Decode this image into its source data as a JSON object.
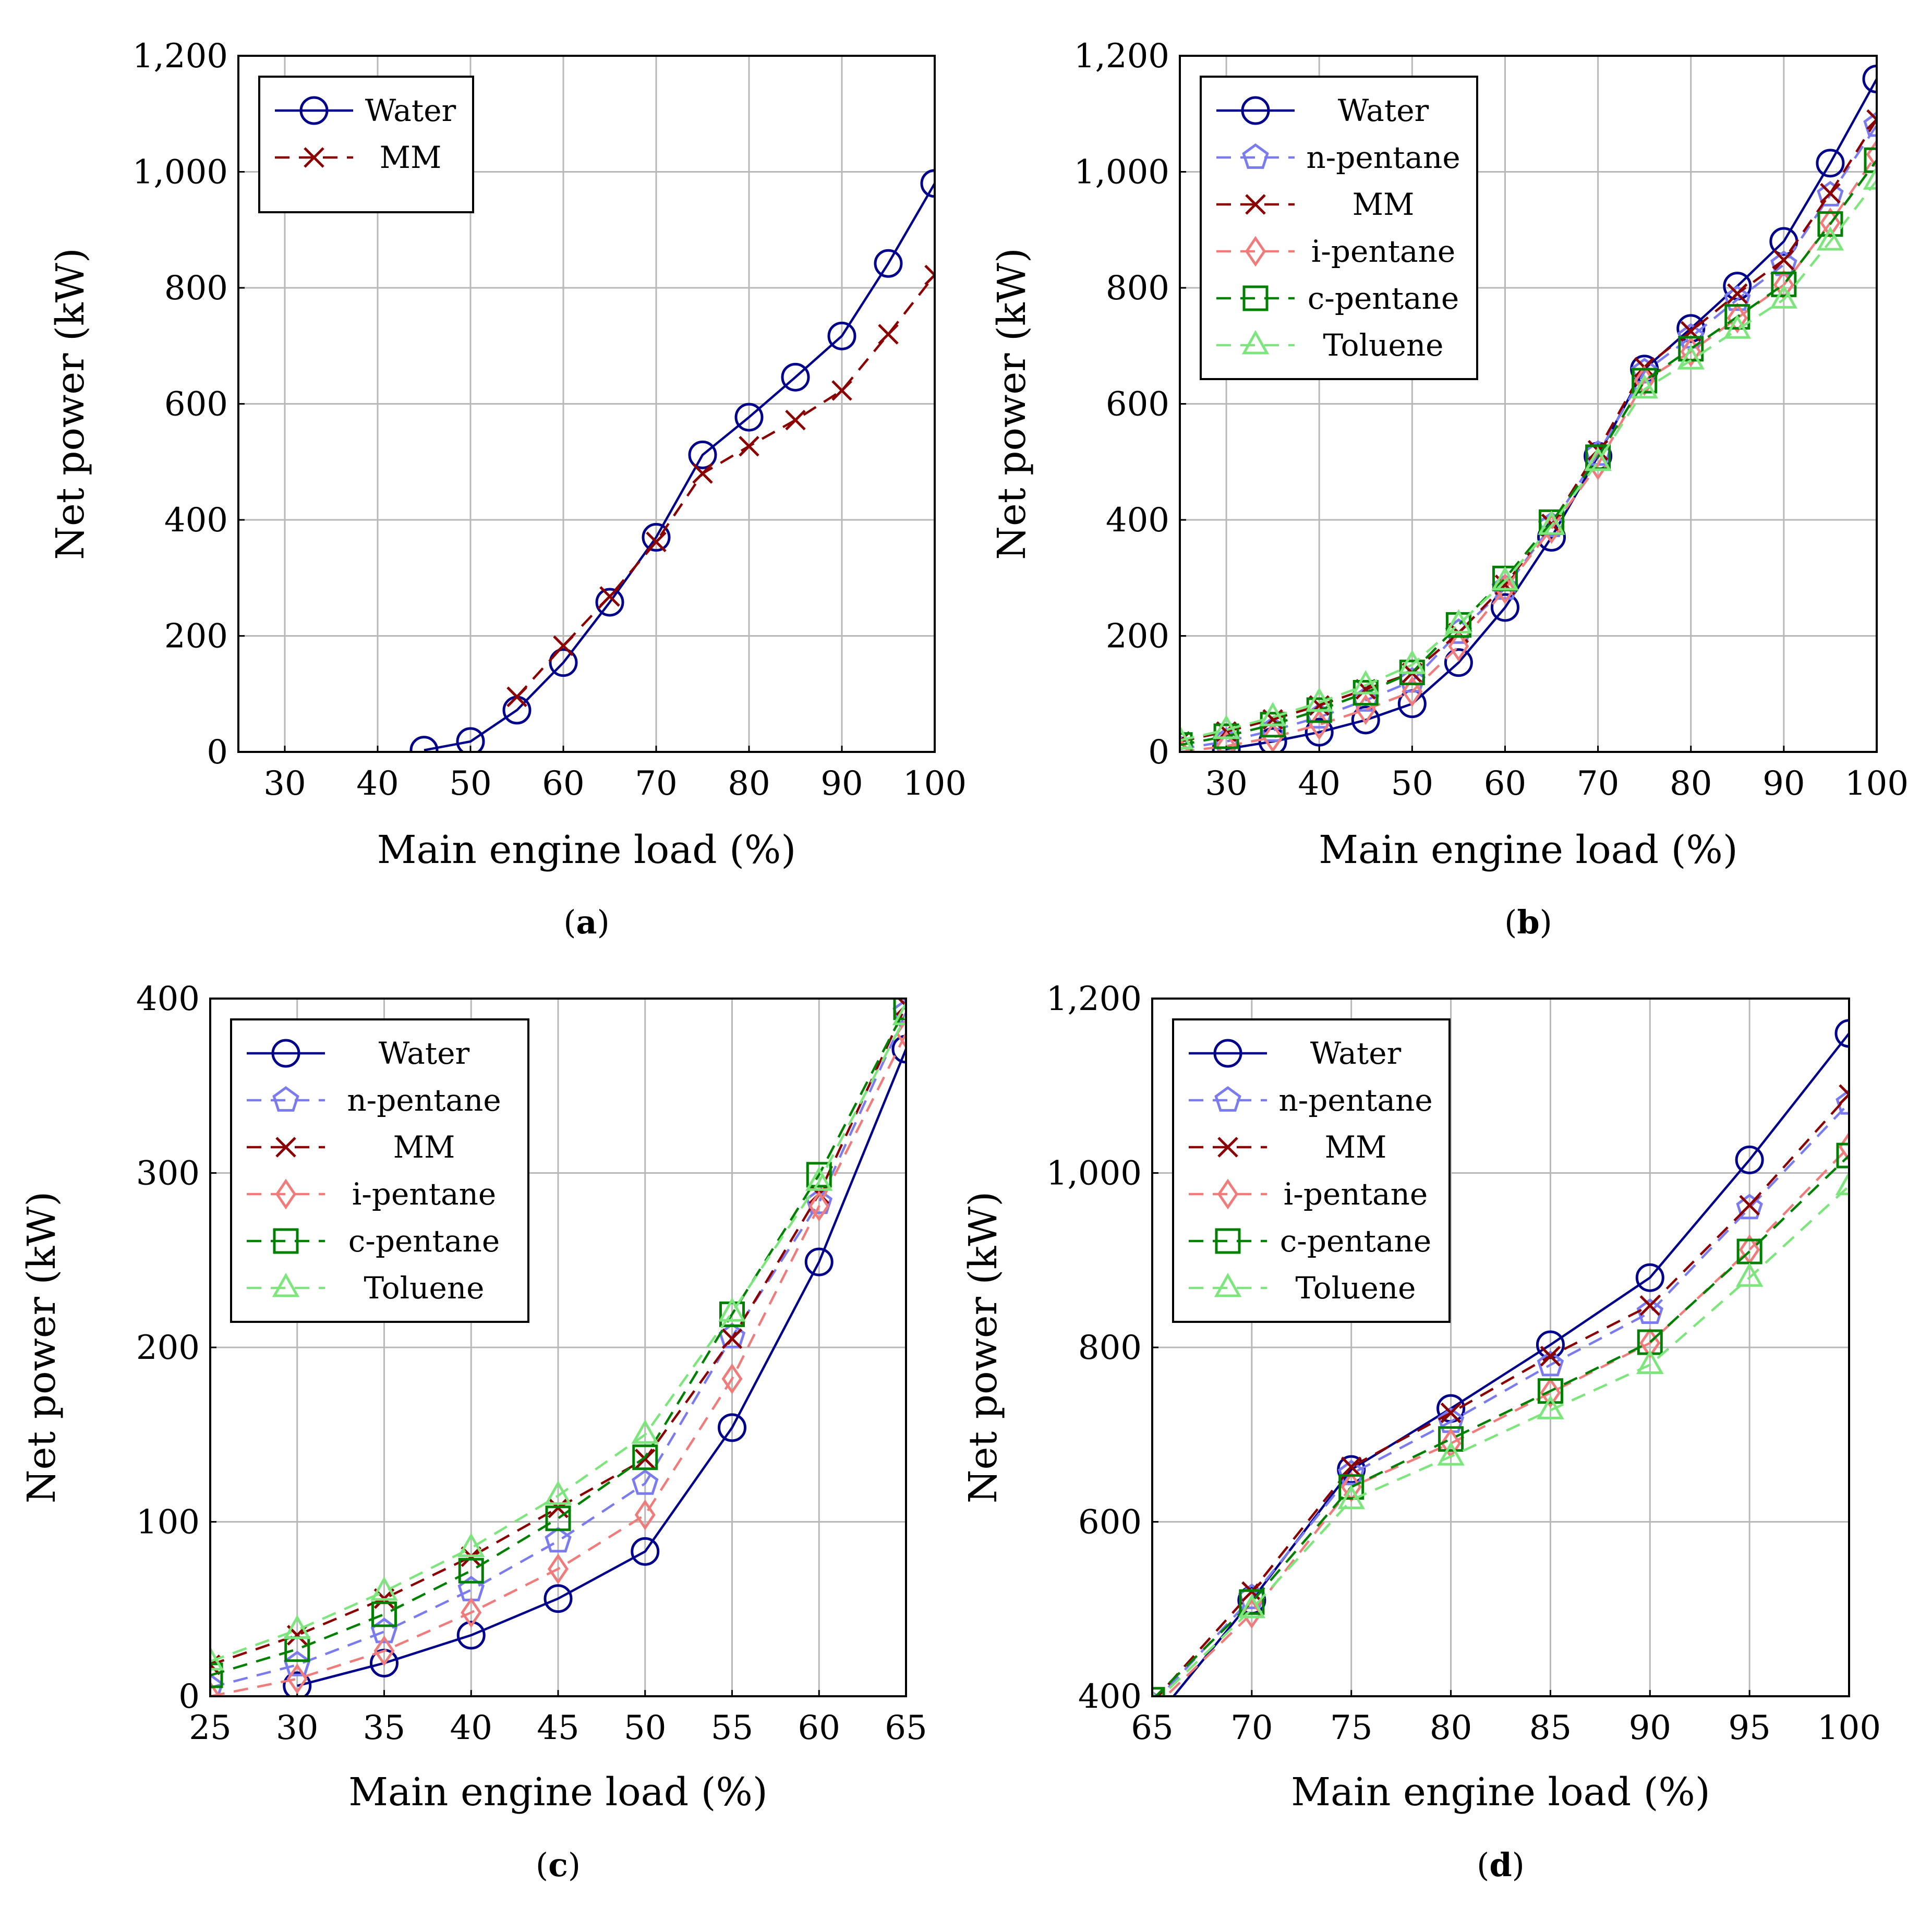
{
  "chart_data": [
    {
      "type": "line",
      "caption_letter": "a",
      "xlabel": "Main engine load (%)",
      "ylabel": "Net power (kW)",
      "xlim": [
        25,
        100
      ],
      "ylim": [
        0,
        1200
      ],
      "xticks": [
        30,
        40,
        50,
        60,
        70,
        80,
        90,
        100
      ],
      "xtick_labels": [
        "30",
        "40",
        "50",
        "60",
        "70",
        "80",
        "90",
        "100"
      ],
      "yticks": [
        0,
        200,
        400,
        600,
        800,
        1000,
        1200
      ],
      "ytick_labels": [
        "0",
        "200",
        "400",
        "600",
        "800",
        "1,000",
        "1,200"
      ],
      "grid": true,
      "legend": "top-left",
      "series": [
        {
          "name": "Water",
          "color": "#00008b",
          "marker": "circle",
          "dash": false,
          "x": [
            45,
            50,
            55,
            60,
            65,
            70,
            75,
            80,
            85,
            90,
            95,
            100
          ],
          "y": [
            3,
            18,
            72,
            154,
            258,
            370,
            512,
            577,
            646,
            717,
            842,
            980
          ]
        },
        {
          "name": "MM",
          "color": "#8b0000",
          "marker": "x",
          "dash": true,
          "x": [
            55,
            60,
            65,
            70,
            75,
            80,
            85,
            90,
            95,
            100
          ],
          "y": [
            95,
            183,
            268,
            362,
            480,
            527,
            572,
            623,
            720,
            822
          ]
        }
      ]
    },
    {
      "type": "line",
      "caption_letter": "b",
      "xlabel": "Main engine load (%)",
      "ylabel": "Net power (kW)",
      "xlim": [
        25,
        100
      ],
      "ylim": [
        0,
        1200
      ],
      "xticks": [
        30,
        40,
        50,
        60,
        70,
        80,
        90,
        100
      ],
      "xtick_labels": [
        "30",
        "40",
        "50",
        "60",
        "70",
        "80",
        "90",
        "100"
      ],
      "yticks": [
        0,
        200,
        400,
        600,
        800,
        1000,
        1200
      ],
      "ytick_labels": [
        "0",
        "200",
        "400",
        "600",
        "800",
        "1,000",
        "1,200"
      ],
      "grid": true,
      "legend": "top-left",
      "series": [
        {
          "name": "Water",
          "color": "#00008b",
          "marker": "circle",
          "dash": false,
          "x": [
            30,
            35,
            40,
            45,
            50,
            55,
            60,
            65,
            70,
            75,
            80,
            85,
            90,
            95,
            100
          ],
          "y": [
            5,
            18,
            34,
            55,
            83,
            154,
            249,
            370,
            510,
            660,
            730,
            803,
            880,
            1015,
            1160
          ]
        },
        {
          "name": "n-pentane",
          "color": "#7b7bf0",
          "marker": "pentagon",
          "dash": true,
          "x": [
            25,
            30,
            35,
            40,
            45,
            50,
            55,
            60,
            65,
            70,
            75,
            80,
            85,
            90,
            95,
            100
          ],
          "y": [
            5,
            18,
            37,
            60,
            89,
            122,
            206,
            282,
            390,
            513,
            655,
            715,
            780,
            840,
            960,
            1080
          ]
        },
        {
          "name": "MM",
          "color": "#8b0000",
          "marker": "x",
          "dash": true,
          "x": [
            25,
            30,
            35,
            40,
            45,
            50,
            55,
            60,
            65,
            70,
            75,
            80,
            85,
            90,
            95,
            100
          ],
          "y": [
            18,
            35,
            56,
            80,
            108,
            136,
            205,
            288,
            393,
            520,
            663,
            725,
            790,
            848,
            963,
            1090
          ]
        },
        {
          "name": "i-pentane",
          "color": "#f07b7b",
          "marker": "diamond",
          "dash": true,
          "x": [
            25,
            30,
            35,
            40,
            45,
            50,
            55,
            60,
            65,
            70,
            75,
            80,
            85,
            90,
            95,
            100
          ],
          "y": [
            0,
            10,
            25,
            47,
            73,
            104,
            182,
            281,
            385,
            495,
            640,
            690,
            748,
            805,
            912,
            1030
          ]
        },
        {
          "name": "c-pentane",
          "color": "#008000",
          "marker": "square",
          "dash": true,
          "x": [
            25,
            30,
            35,
            40,
            45,
            50,
            55,
            60,
            65,
            70,
            75,
            80,
            85,
            90,
            95,
            100
          ],
          "y": [
            12,
            27,
            47,
            72,
            102,
            137,
            219,
            299,
            396,
            508,
            640,
            695,
            750,
            806,
            910,
            1020
          ]
        },
        {
          "name": "Toluene",
          "color": "#7ce67c",
          "marker": "triangle",
          "dash": true,
          "x": [
            25,
            30,
            35,
            40,
            45,
            50,
            55,
            60,
            65,
            70,
            75,
            80,
            85,
            90,
            95,
            100
          ],
          "y": [
            20,
            38,
            60,
            85,
            115,
            150,
            220,
            294,
            390,
            500,
            625,
            675,
            728,
            780,
            880,
            985
          ]
        }
      ]
    },
    {
      "type": "line",
      "caption_letter": "c",
      "xlabel": "Main engine load (%)",
      "ylabel": "Net power (kW)",
      "xlim": [
        25,
        65
      ],
      "ylim": [
        0,
        400
      ],
      "xticks": [
        25,
        30,
        35,
        40,
        45,
        50,
        55,
        60,
        65
      ],
      "xtick_labels": [
        "25",
        "30",
        "35",
        "40",
        "45",
        "50",
        "55",
        "60",
        "65"
      ],
      "yticks": [
        0,
        100,
        200,
        300,
        400
      ],
      "ytick_labels": [
        "0",
        "100",
        "200",
        "300",
        "400"
      ],
      "grid": true,
      "legend": "top-left",
      "series": [
        {
          "name": "Water",
          "color": "#00008b",
          "marker": "circle",
          "dash": false,
          "x": [
            30,
            35,
            40,
            45,
            50,
            55,
            60,
            65
          ],
          "y": [
            6,
            19,
            35,
            56,
            83,
            154,
            249,
            371
          ]
        },
        {
          "name": "n-pentane",
          "color": "#7b7bf0",
          "marker": "pentagon",
          "dash": true,
          "x": [
            25,
            30,
            35,
            40,
            45,
            50,
            55,
            60,
            65
          ],
          "y": [
            5,
            18,
            37,
            61,
            89,
            122,
            206,
            283,
            392
          ]
        },
        {
          "name": "MM",
          "color": "#8b0000",
          "marker": "x",
          "dash": true,
          "x": [
            25,
            30,
            35,
            40,
            45,
            50,
            55,
            60,
            65
          ],
          "y": [
            18,
            35,
            56,
            80,
            108,
            136,
            205,
            288,
            396
          ]
        },
        {
          "name": "i-pentane",
          "color": "#f07b7b",
          "marker": "diamond",
          "dash": true,
          "x": [
            25,
            30,
            35,
            40,
            45,
            50,
            55,
            60,
            65
          ],
          "y": [
            0,
            10,
            26,
            48,
            73,
            104,
            182,
            281,
            380
          ]
        },
        {
          "name": "c-pentane",
          "color": "#008000",
          "marker": "square",
          "dash": true,
          "x": [
            25,
            30,
            35,
            40,
            45,
            50,
            55,
            60,
            65
          ],
          "y": [
            12,
            27,
            47,
            72,
            102,
            137,
            219,
            299,
            395
          ]
        },
        {
          "name": "Toluene",
          "color": "#7ce67c",
          "marker": "triangle",
          "dash": true,
          "x": [
            25,
            30,
            35,
            40,
            45,
            50,
            55,
            60,
            65
          ],
          "y": [
            20,
            38,
            60,
            85,
            115,
            150,
            220,
            295,
            390
          ]
        }
      ]
    },
    {
      "type": "line",
      "caption_letter": "d",
      "xlabel": "Main engine load (%)",
      "ylabel": "Net power (kW)",
      "xlim": [
        65,
        100
      ],
      "ylim": [
        400,
        1200
      ],
      "xticks": [
        65,
        70,
        75,
        80,
        85,
        90,
        95,
        100
      ],
      "xtick_labels": [
        "65",
        "70",
        "75",
        "80",
        "85",
        "90",
        "95",
        "100"
      ],
      "yticks": [
        400,
        600,
        800,
        1000,
        1200
      ],
      "ytick_labels": [
        "400",
        "600",
        "800",
        "1,000",
        "1,200"
      ],
      "grid": true,
      "legend": "top-left",
      "series": [
        {
          "name": "Water",
          "color": "#00008b",
          "marker": "circle",
          "dash": false,
          "x": [
            65,
            70,
            75,
            80,
            85,
            90,
            95,
            100
          ],
          "y": [
            370,
            510,
            660,
            730,
            803,
            880,
            1015,
            1160
          ]
        },
        {
          "name": "n-pentane",
          "color": "#7b7bf0",
          "marker": "pentagon",
          "dash": true,
          "x": [
            65,
            70,
            75,
            80,
            85,
            90,
            95,
            100
          ],
          "y": [
            390,
            513,
            655,
            715,
            780,
            840,
            960,
            1080
          ]
        },
        {
          "name": "MM",
          "color": "#8b0000",
          "marker": "x",
          "dash": true,
          "x": [
            65,
            70,
            75,
            80,
            85,
            90,
            95,
            100
          ],
          "y": [
            393,
            520,
            663,
            725,
            790,
            848,
            963,
            1090
          ]
        },
        {
          "name": "i-pentane",
          "color": "#f07b7b",
          "marker": "diamond",
          "dash": true,
          "x": [
            65,
            70,
            75,
            80,
            85,
            90,
            95,
            100
          ],
          "y": [
            385,
            495,
            640,
            690,
            748,
            805,
            912,
            1030
          ]
        },
        {
          "name": "c-pentane",
          "color": "#008000",
          "marker": "square",
          "dash": true,
          "x": [
            65,
            70,
            75,
            80,
            85,
            90,
            95,
            100
          ],
          "y": [
            396,
            508,
            640,
            695,
            750,
            806,
            910,
            1020
          ]
        },
        {
          "name": "Toluene",
          "color": "#7ce67c",
          "marker": "triangle",
          "dash": true,
          "x": [
            65,
            70,
            75,
            80,
            85,
            90,
            95,
            100
          ],
          "y": [
            390,
            500,
            625,
            675,
            728,
            780,
            880,
            985
          ]
        }
      ]
    }
  ]
}
